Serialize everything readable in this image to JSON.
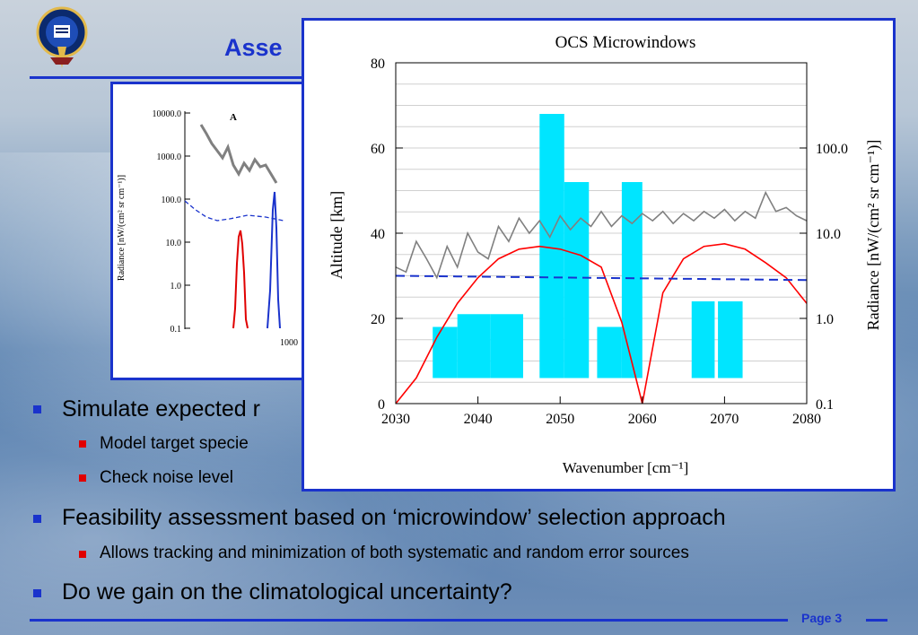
{
  "slide": {
    "title": "Asse",
    "page_label": "Page 3",
    "bullets": [
      {
        "level": 1,
        "text": "Simulate expected r"
      },
      {
        "level": 2,
        "text": "Model target specie"
      },
      {
        "level": 2,
        "text": "Check noise level"
      },
      {
        "level": 1,
        "text": "Feasibility assessment based on ‘microwindow’ selection approach"
      },
      {
        "level": 2,
        "text": "Allows tracking and minimization of both systematic and random error sources"
      },
      {
        "level": 1,
        "text": "Do we gain on the climatological uncertainty?"
      }
    ]
  },
  "colors": {
    "accent": "#1a33cc",
    "bullet_sub": "#e00000",
    "bars": "#00e5ff",
    "gray_line": "#808080",
    "red_line": "#ff0000",
    "blue_dash": "#1a33cc"
  },
  "icons": {
    "logo": "university-crest-icon"
  },
  "chart_data": [
    {
      "type": "bar",
      "title": "OCS Microwindows",
      "xlabel": "Wavenumber [cm⁻¹]",
      "ylabel": "Altitude [km]",
      "y2label": "Radiance [nW/(cm² sr cm⁻¹)]",
      "xlim": [
        2030,
        2080
      ],
      "ylim": [
        0,
        80
      ],
      "y2lim": [
        0.1,
        1000
      ],
      "y2_scale": "log",
      "xticks": [
        "2030",
        "2040",
        "2050",
        "2060",
        "2070",
        "2080"
      ],
      "yticks": [
        "0",
        "20",
        "40",
        "60",
        "80"
      ],
      "y2ticks": [
        "0.1",
        "1.0",
        "10.0",
        "100.0"
      ],
      "bars": [
        {
          "x0": 2034.5,
          "x1": 2037.5,
          "y0": 6,
          "y1": 18
        },
        {
          "x0": 2037.5,
          "x1": 2041.5,
          "y0": 6,
          "y1": 21
        },
        {
          "x0": 2041.5,
          "x1": 2045.5,
          "y0": 6,
          "y1": 21
        },
        {
          "x0": 2047.5,
          "x1": 2050.5,
          "y0": 6,
          "y1": 68
        },
        {
          "x0": 2050.5,
          "x1": 2053.5,
          "y0": 6,
          "y1": 52
        },
        {
          "x0": 2054.5,
          "x1": 2057.5,
          "y0": 6,
          "y1": 18
        },
        {
          "x0": 2057.5,
          "x1": 2060.0,
          "y0": 6,
          "y1": 52
        },
        {
          "x0": 2066.0,
          "x1": 2068.8,
          "y0": 6,
          "y1": 24
        },
        {
          "x0": 2069.2,
          "x1": 2072.2,
          "y0": 6,
          "y1": 24
        }
      ],
      "noise_level_y": 30,
      "series": [
        {
          "style": "gray",
          "y2_values": [
            4,
            3.5,
            8,
            5,
            3,
            7,
            4,
            10,
            6,
            5,
            12,
            8,
            15,
            10,
            14,
            9,
            16,
            11,
            15,
            12,
            18,
            12,
            16,
            13,
            17,
            14,
            18,
            13,
            17,
            14,
            18,
            15,
            19,
            14,
            18,
            15,
            30,
            18,
            20,
            16,
            14
          ]
        },
        {
          "style": "red",
          "y2_values": [
            0.1,
            0.2,
            0.6,
            1.5,
            3,
            5,
            6.5,
            7,
            6.5,
            5.5,
            4,
            0.9,
            0.1,
            2,
            5,
            7,
            7.5,
            6.5,
            4.5,
            3,
            1.5
          ]
        }
      ]
    },
    {
      "type": "line",
      "title": "A",
      "ylabel": "Radiance [nW/(cm² sr cm⁻¹)]",
      "yticks": [
        "10000.0",
        "1000.0",
        "100.0",
        "10.0",
        "1.0",
        "0.1"
      ],
      "xticks_partial": [
        "1000"
      ]
    }
  ]
}
